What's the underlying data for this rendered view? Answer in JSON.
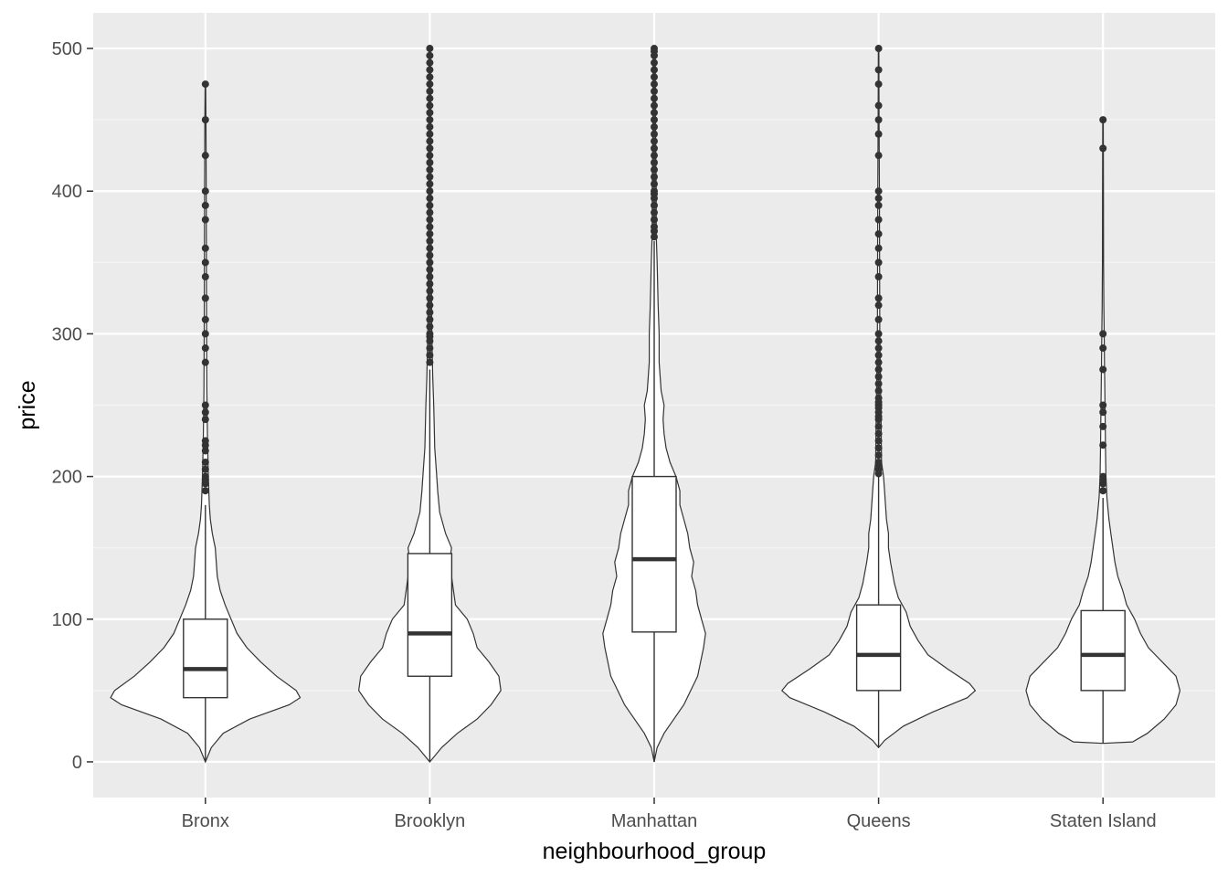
{
  "chart_data": {
    "type": "violin",
    "xlabel": "neighbourhood_group",
    "ylabel": "price",
    "ylim": [
      -25,
      525
    ],
    "y_ticks": [
      0,
      100,
      200,
      300,
      400,
      500
    ],
    "y_tick_labels": [
      "0",
      "100",
      "200",
      "300",
      "400",
      "500"
    ],
    "categories": [
      "Bronx",
      "Brooklyn",
      "Manhattan",
      "Queens",
      "Staten Island"
    ],
    "groups": [
      {
        "name": "Bronx",
        "box": {
          "q1": 45,
          "median": 65,
          "q3": 100,
          "whisker_low": 0,
          "whisker_high": 180
        },
        "outliers": [
          190,
          195,
          198,
          200,
          205,
          210,
          218,
          222,
          225,
          240,
          245,
          250,
          280,
          290,
          300,
          310,
          325,
          340,
          350,
          360,
          380,
          390,
          400,
          425,
          450,
          475
        ],
        "density": [
          [
            0,
            0.0
          ],
          [
            10,
            0.06
          ],
          [
            20,
            0.18
          ],
          [
            30,
            0.45
          ],
          [
            40,
            0.85
          ],
          [
            45,
            0.96
          ],
          [
            50,
            0.92
          ],
          [
            60,
            0.72
          ],
          [
            70,
            0.56
          ],
          [
            80,
            0.42
          ],
          [
            90,
            0.32
          ],
          [
            100,
            0.26
          ],
          [
            110,
            0.2
          ],
          [
            120,
            0.15
          ],
          [
            130,
            0.12
          ],
          [
            140,
            0.11
          ],
          [
            150,
            0.1
          ],
          [
            160,
            0.07
          ],
          [
            170,
            0.05
          ],
          [
            180,
            0.04
          ],
          [
            200,
            0.03
          ],
          [
            230,
            0.02
          ],
          [
            260,
            0.015
          ],
          [
            300,
            0.012
          ],
          [
            350,
            0.01
          ],
          [
            400,
            0.008
          ],
          [
            450,
            0.006
          ],
          [
            475,
            0.003
          ]
        ]
      },
      {
        "name": "Brooklyn",
        "box": {
          "q1": 60,
          "median": 90,
          "q3": 146,
          "whisker_low": 0,
          "whisker_high": 275
        },
        "outliers": [
          280,
          285,
          290,
          295,
          298,
          300,
          305,
          310,
          315,
          320,
          325,
          330,
          335,
          340,
          345,
          350,
          355,
          360,
          365,
          370,
          375,
          380,
          385,
          390,
          395,
          400,
          405,
          410,
          415,
          420,
          425,
          430,
          435,
          440,
          445,
          450,
          455,
          460,
          465,
          470,
          475,
          480,
          485,
          490,
          495,
          500
        ],
        "density": [
          [
            0,
            0.0
          ],
          [
            10,
            0.12
          ],
          [
            20,
            0.28
          ],
          [
            30,
            0.48
          ],
          [
            40,
            0.62
          ],
          [
            50,
            0.72
          ],
          [
            60,
            0.7
          ],
          [
            70,
            0.6
          ],
          [
            80,
            0.48
          ],
          [
            90,
            0.44
          ],
          [
            100,
            0.38
          ],
          [
            110,
            0.26
          ],
          [
            120,
            0.24
          ],
          [
            130,
            0.22
          ],
          [
            140,
            0.2
          ],
          [
            150,
            0.22
          ],
          [
            160,
            0.16
          ],
          [
            175,
            0.1
          ],
          [
            190,
            0.08
          ],
          [
            200,
            0.07
          ],
          [
            220,
            0.05
          ],
          [
            250,
            0.04
          ],
          [
            270,
            0.03
          ],
          [
            300,
            0.02
          ],
          [
            350,
            0.015
          ],
          [
            400,
            0.012
          ],
          [
            450,
            0.01
          ],
          [
            500,
            0.006
          ]
        ]
      },
      {
        "name": "Manhattan",
        "box": {
          "q1": 91,
          "median": 142,
          "q3": 200,
          "whisker_low": 0,
          "whisker_high": 365
        },
        "outliers": [
          368,
          372,
          375,
          380,
          385,
          390,
          395,
          398,
          400,
          405,
          410,
          415,
          420,
          425,
          430,
          435,
          440,
          445,
          450,
          455,
          460,
          465,
          470,
          475,
          480,
          485,
          490,
          495,
          498,
          500
        ],
        "density": [
          [
            0,
            0.0
          ],
          [
            10,
            0.03
          ],
          [
            20,
            0.1
          ],
          [
            40,
            0.3
          ],
          [
            60,
            0.44
          ],
          [
            80,
            0.5
          ],
          [
            90,
            0.52
          ],
          [
            100,
            0.48
          ],
          [
            110,
            0.44
          ],
          [
            120,
            0.42
          ],
          [
            130,
            0.38
          ],
          [
            140,
            0.4
          ],
          [
            150,
            0.36
          ],
          [
            160,
            0.34
          ],
          [
            170,
            0.3
          ],
          [
            180,
            0.26
          ],
          [
            190,
            0.26
          ],
          [
            200,
            0.22
          ],
          [
            210,
            0.16
          ],
          [
            220,
            0.12
          ],
          [
            230,
            0.1
          ],
          [
            240,
            0.09
          ],
          [
            250,
            0.1
          ],
          [
            260,
            0.07
          ],
          [
            280,
            0.05
          ],
          [
            300,
            0.05
          ],
          [
            320,
            0.04
          ],
          [
            350,
            0.03
          ],
          [
            370,
            0.02
          ],
          [
            400,
            0.02
          ],
          [
            450,
            0.012
          ],
          [
            500,
            0.01
          ]
        ]
      },
      {
        "name": "Queens",
        "box": {
          "q1": 50,
          "median": 75,
          "q3": 110,
          "whisker_low": 10,
          "whisker_high": 200
        },
        "outliers": [
          202,
          205,
          208,
          210,
          215,
          220,
          225,
          230,
          235,
          240,
          242,
          245,
          248,
          250,
          252,
          255,
          260,
          265,
          270,
          275,
          280,
          285,
          290,
          295,
          300,
          310,
          320,
          325,
          340,
          350,
          360,
          370,
          380,
          390,
          395,
          400,
          425,
          440,
          450,
          460,
          475,
          485,
          500
        ],
        "density": [
          [
            10,
            0.0
          ],
          [
            15,
            0.06
          ],
          [
            25,
            0.25
          ],
          [
            35,
            0.55
          ],
          [
            45,
            0.9
          ],
          [
            50,
            0.98
          ],
          [
            55,
            0.92
          ],
          [
            65,
            0.7
          ],
          [
            75,
            0.5
          ],
          [
            85,
            0.4
          ],
          [
            95,
            0.32
          ],
          [
            105,
            0.28
          ],
          [
            115,
            0.2
          ],
          [
            125,
            0.16
          ],
          [
            140,
            0.12
          ],
          [
            150,
            0.1
          ],
          [
            160,
            0.1
          ],
          [
            170,
            0.08
          ],
          [
            190,
            0.06
          ],
          [
            200,
            0.05
          ],
          [
            210,
            0.03
          ],
          [
            240,
            0.025
          ],
          [
            260,
            0.02
          ],
          [
            300,
            0.012
          ],
          [
            350,
            0.01
          ],
          [
            400,
            0.008
          ],
          [
            450,
            0.005
          ],
          [
            500,
            0.003
          ]
        ]
      },
      {
        "name": "Staten Island",
        "box": {
          "q1": 50,
          "median": 75,
          "q3": 106,
          "whisker_low": 13,
          "whisker_high": 185
        },
        "outliers": [
          190,
          195,
          198,
          200,
          222,
          235,
          245,
          250,
          275,
          290,
          300,
          430,
          450
        ],
        "density": [
          [
            13,
            0.0
          ],
          [
            14,
            0.3
          ],
          [
            20,
            0.45
          ],
          [
            30,
            0.62
          ],
          [
            40,
            0.74
          ],
          [
            50,
            0.78
          ],
          [
            60,
            0.74
          ],
          [
            70,
            0.6
          ],
          [
            80,
            0.46
          ],
          [
            90,
            0.38
          ],
          [
            100,
            0.32
          ],
          [
            110,
            0.24
          ],
          [
            120,
            0.2
          ],
          [
            130,
            0.15
          ],
          [
            140,
            0.12
          ],
          [
            150,
            0.1
          ],
          [
            160,
            0.08
          ],
          [
            170,
            0.06
          ],
          [
            185,
            0.04
          ],
          [
            200,
            0.03
          ],
          [
            220,
            0.025
          ],
          [
            250,
            0.02
          ],
          [
            280,
            0.015
          ],
          [
            300,
            0.012
          ],
          [
            320,
            0.008
          ],
          [
            350,
            0.006
          ],
          [
            400,
            0.005
          ],
          [
            450,
            0.003
          ]
        ]
      }
    ],
    "colors": {
      "panel_background": "#ebebeb",
      "grid_major": "#ffffff",
      "grid_minor": "#f5f5f5",
      "violin_fill": "#ffffff",
      "outline": "#333333",
      "outlier": "#333333"
    }
  }
}
